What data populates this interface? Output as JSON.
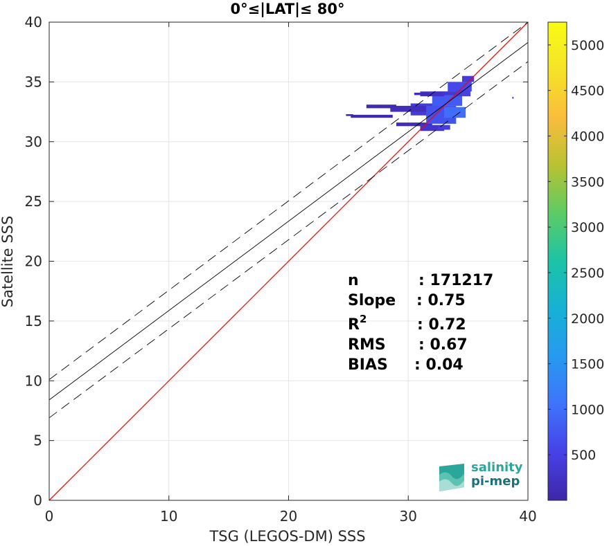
{
  "chart_data": {
    "type": "heatmap",
    "title": "0°≤|LAT|≤ 80°",
    "xlabel": "TSG (LEGOS-DM) SSS",
    "ylabel": "Satellite SSS",
    "xlim": [
      0,
      40
    ],
    "ylim": [
      0,
      40
    ],
    "xticks": [
      0,
      10,
      20,
      30,
      40
    ],
    "yticks": [
      0,
      5,
      10,
      15,
      20,
      25,
      30,
      35,
      40
    ],
    "grid": true,
    "lines": [
      {
        "name": "identity",
        "color": "#ff0000",
        "style": "solid",
        "points": [
          [
            0,
            0
          ],
          [
            40,
            40
          ]
        ]
      },
      {
        "name": "fit",
        "color": "#000000",
        "style": "solid",
        "points": [
          [
            0,
            8.4
          ],
          [
            40,
            38.3
          ]
        ]
      },
      {
        "name": "fit-plus",
        "color": "#000000",
        "style": "dashed",
        "points": [
          [
            0,
            10.1
          ],
          [
            40,
            40.0
          ]
        ]
      },
      {
        "name": "fit-minus",
        "color": "#000000",
        "style": "dashed",
        "points": [
          [
            0,
            6.9
          ],
          [
            40,
            36.7
          ]
        ]
      }
    ],
    "density_cells": [
      {
        "x": 30.2,
        "y": 32.2,
        "w": 2.6,
        "h": 1.0,
        "value": 400
      },
      {
        "x": 28.5,
        "y": 32.5,
        "w": 3.5,
        "h": 0.5,
        "value": 150
      },
      {
        "x": 26.5,
        "y": 32.8,
        "w": 2.5,
        "h": 0.3,
        "value": 80
      },
      {
        "x": 25.2,
        "y": 32.0,
        "w": 3.5,
        "h": 0.25,
        "value": 60
      },
      {
        "x": 24.8,
        "y": 32.15,
        "w": 0.6,
        "h": 0.15,
        "value": 40
      },
      {
        "x": 29.0,
        "y": 31.3,
        "w": 3.0,
        "h": 0.3,
        "value": 120
      },
      {
        "x": 31.0,
        "y": 30.9,
        "w": 2.0,
        "h": 0.5,
        "value": 300
      },
      {
        "x": 31.5,
        "y": 31.5,
        "w": 2.5,
        "h": 1.5,
        "value": 700
      },
      {
        "x": 32.0,
        "y": 33.0,
        "w": 2.5,
        "h": 1.2,
        "value": 800
      },
      {
        "x": 31.0,
        "y": 33.8,
        "w": 2.0,
        "h": 0.4,
        "value": 250
      },
      {
        "x": 30.5,
        "y": 33.9,
        "w": 1.2,
        "h": 0.2,
        "value": 100
      },
      {
        "x": 33.3,
        "y": 34.2,
        "w": 2.0,
        "h": 0.8,
        "value": 600
      },
      {
        "x": 34.5,
        "y": 35.0,
        "w": 1.0,
        "h": 0.5,
        "value": 400
      },
      {
        "x": 33.0,
        "y": 32.0,
        "w": 1.8,
        "h": 0.9,
        "value": 1000
      },
      {
        "x": 32.8,
        "y": 33.9,
        "w": 1.5,
        "h": 0.3,
        "value": 350
      },
      {
        "x": 34.0,
        "y": 33.8,
        "w": 1.2,
        "h": 0.5,
        "value": 500
      },
      {
        "x": 27.5,
        "y": 32.95,
        "w": 0.3,
        "h": 0.1,
        "value": 30
      },
      {
        "x": 38.7,
        "y": 33.6,
        "w": 0.1,
        "h": 0.15,
        "value": 20
      },
      {
        "x": 32.5,
        "y": 31.0,
        "w": 1.0,
        "h": 0.4,
        "value": 450
      }
    ],
    "colorbar": {
      "min": 0,
      "max": 5250,
      "ticks": [
        500,
        1000,
        1500,
        2000,
        2500,
        3000,
        3500,
        4000,
        4500,
        5000
      ],
      "colormap": [
        "#3e26a8",
        "#4741e6",
        "#3f73fc",
        "#2799ef",
        "#17b1d5",
        "#1cc3a7",
        "#5dcb66",
        "#b8c232",
        "#fabd3c",
        "#f5e328",
        "#f9fb15"
      ]
    },
    "stats": [
      {
        "label": "n",
        "value": ": 171217"
      },
      {
        "label": "Slope",
        "value": ": 0.75"
      },
      {
        "label": "R",
        "sup": "2",
        "value": ": 0.72"
      },
      {
        "label": "RMS",
        "value": ": 0.67"
      },
      {
        "label": "BIAS",
        "value": ": 0.04"
      }
    ]
  },
  "logo": {
    "line1": "salinity",
    "line2": "pi-mep"
  }
}
